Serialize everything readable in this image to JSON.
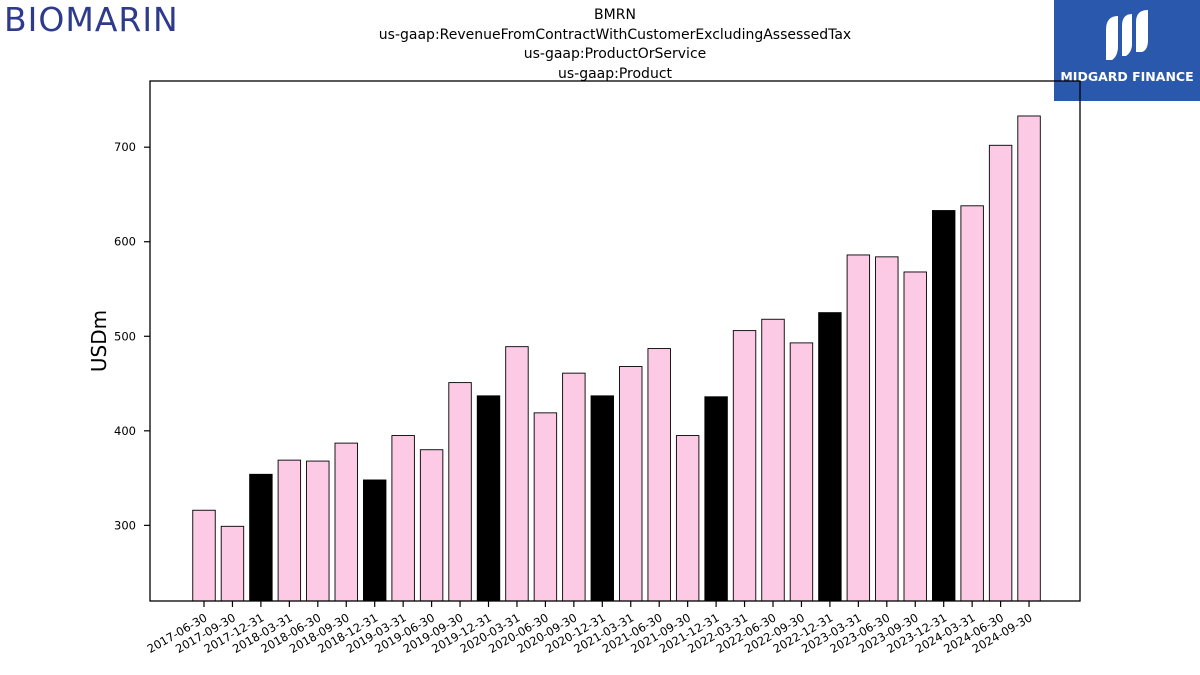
{
  "logos": {
    "left_text": "BIOMARIN",
    "right_text": "MIDGARD FINANCE",
    "right_bg_color": "#2a58ad"
  },
  "title_lines": [
    "BMRN",
    "us-gaap:RevenueFromContractWithCustomerExcludingAssessedTax",
    "us-gaap:ProductOrService",
    "us-gaap:Product"
  ],
  "chart_data": {
    "type": "bar",
    "ylabel": "USDm",
    "xlabel": "",
    "ylim": [
      220,
      770
    ],
    "yticks": [
      300,
      400,
      500,
      600,
      700
    ],
    "grid": false,
    "colors": {
      "quarter": "#fccae4",
      "year_end": "#000000",
      "edge": "#000000"
    },
    "categories": [
      "2017-06-30",
      "2017-09-30",
      "2017-12-31",
      "2018-03-31",
      "2018-06-30",
      "2018-09-30",
      "2018-12-31",
      "2019-03-31",
      "2019-06-30",
      "2019-09-30",
      "2019-12-31",
      "2020-03-31",
      "2020-06-30",
      "2020-09-30",
      "2020-12-31",
      "2021-03-31",
      "2021-06-30",
      "2021-09-30",
      "2021-12-31",
      "2022-03-31",
      "2022-06-30",
      "2022-09-30",
      "2022-12-31",
      "2023-03-31",
      "2023-06-30",
      "2023-09-30",
      "2023-12-31",
      "2024-03-31",
      "2024-06-30",
      "2024-09-30"
    ],
    "values": [
      316,
      299,
      354,
      369,
      368,
      387,
      348,
      395,
      380,
      451,
      437,
      489,
      419,
      461,
      437,
      468,
      487,
      395,
      436,
      506,
      518,
      493,
      525,
      586,
      584,
      568,
      633,
      638,
      702,
      733
    ]
  }
}
